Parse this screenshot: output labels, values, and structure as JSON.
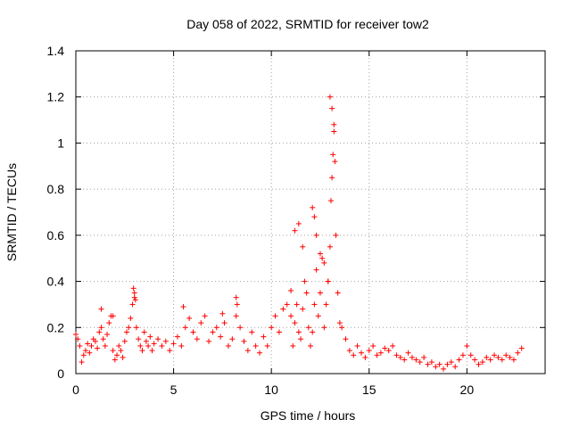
{
  "chart_data": {
    "type": "scatter",
    "title": "Day 058 of 2022, SRMTID for receiver tow2",
    "xlabel": "GPS time / hours",
    "ylabel": "SRMTID / TECUs",
    "xlim": [
      0,
      24
    ],
    "ylim": [
      0,
      1.4
    ],
    "xticks": [
      "0",
      "5",
      "10",
      "15",
      "20"
    ],
    "yticks": [
      "0",
      "0.2",
      "0.4",
      "0.6",
      "0.8",
      "1",
      "1.2",
      "1.4"
    ],
    "grid": true,
    "marker": "+",
    "color": "#ff0000",
    "series": [
      {
        "name": "SRMTID",
        "x": [
          0.0,
          0.1,
          0.2,
          0.3,
          0.4,
          0.5,
          0.6,
          0.7,
          0.8,
          0.9,
          1.0,
          1.1,
          1.2,
          1.3,
          1.4,
          1.5,
          1.6,
          1.7,
          1.8,
          1.9,
          2.0,
          2.1,
          2.2,
          2.3,
          2.4,
          2.5,
          2.6,
          2.7,
          2.8,
          2.9,
          3.0,
          3.1,
          3.2,
          3.3,
          3.4,
          3.5,
          3.6,
          3.7,
          3.8,
          3.9,
          4.0,
          4.2,
          4.4,
          4.6,
          4.8,
          5.0,
          5.2,
          5.4,
          5.6,
          5.8,
          6.0,
          6.2,
          6.4,
          6.6,
          6.8,
          7.0,
          7.2,
          7.4,
          7.6,
          7.8,
          8.0,
          8.2,
          8.4,
          8.6,
          8.8,
          9.0,
          9.2,
          9.4,
          9.6,
          9.8,
          10.0,
          10.2,
          10.4,
          10.6,
          10.8,
          11.0,
          11.1,
          11.2,
          11.3,
          11.4,
          11.5,
          11.6,
          11.7,
          11.8,
          11.9,
          12.0,
          12.1,
          12.2,
          12.3,
          12.4,
          12.5,
          12.6,
          12.7,
          12.8,
          12.9,
          13.0,
          13.05,
          13.1,
          13.15,
          13.2,
          13.3,
          13.4,
          13.5,
          13.6,
          13.8,
          14.0,
          14.2,
          14.4,
          14.6,
          14.8,
          15.0,
          15.2,
          15.4,
          15.6,
          15.8,
          16.0,
          16.2,
          16.4,
          16.6,
          16.8,
          17.0,
          17.2,
          17.4,
          17.6,
          17.8,
          18.0,
          18.2,
          18.4,
          18.6,
          18.8,
          19.0,
          19.2,
          19.4,
          19.6,
          19.8,
          20.0,
          20.2,
          20.4,
          20.6,
          20.8,
          21.0,
          21.2,
          21.4,
          21.6,
          21.8,
          22.0,
          22.2,
          22.4,
          22.6,
          22.8,
          2.95,
          3.0,
          3.05,
          8.2,
          8.25,
          11.0,
          11.2,
          11.4,
          11.6,
          12.1,
          12.2,
          12.3,
          12.5,
          12.7,
          12.9,
          13.0,
          13.1,
          13.2,
          13.25,
          1.3,
          1.9,
          5.5,
          7.5
        ],
        "y": [
          0.17,
          0.15,
          0.12,
          0.05,
          0.08,
          0.1,
          0.13,
          0.09,
          0.12,
          0.15,
          0.14,
          0.11,
          0.18,
          0.2,
          0.15,
          0.12,
          0.17,
          0.22,
          0.25,
          0.1,
          0.06,
          0.08,
          0.12,
          0.1,
          0.07,
          0.14,
          0.18,
          0.2,
          0.24,
          0.3,
          0.33,
          0.2,
          0.15,
          0.12,
          0.1,
          0.18,
          0.14,
          0.12,
          0.16,
          0.1,
          0.13,
          0.15,
          0.12,
          0.14,
          0.1,
          0.13,
          0.16,
          0.12,
          0.2,
          0.24,
          0.18,
          0.15,
          0.22,
          0.25,
          0.14,
          0.18,
          0.2,
          0.16,
          0.22,
          0.12,
          0.15,
          0.25,
          0.2,
          0.14,
          0.1,
          0.18,
          0.12,
          0.09,
          0.16,
          0.12,
          0.2,
          0.25,
          0.18,
          0.28,
          0.3,
          0.25,
          0.12,
          0.22,
          0.3,
          0.18,
          0.15,
          0.28,
          0.4,
          0.35,
          0.2,
          0.12,
          0.18,
          0.3,
          0.45,
          0.25,
          0.35,
          0.5,
          0.2,
          0.3,
          0.4,
          0.55,
          0.75,
          0.85,
          0.95,
          1.05,
          0.6,
          0.35,
          0.22,
          0.2,
          0.15,
          0.1,
          0.08,
          0.12,
          0.09,
          0.07,
          0.1,
          0.12,
          0.08,
          0.09,
          0.11,
          0.1,
          0.12,
          0.08,
          0.07,
          0.06,
          0.09,
          0.07,
          0.06,
          0.05,
          0.07,
          0.04,
          0.05,
          0.03,
          0.04,
          0.02,
          0.04,
          0.05,
          0.03,
          0.06,
          0.08,
          0.12,
          0.08,
          0.06,
          0.04,
          0.05,
          0.07,
          0.06,
          0.08,
          0.07,
          0.06,
          0.08,
          0.07,
          0.06,
          0.09,
          0.11,
          0.37,
          0.35,
          0.32,
          0.33,
          0.3,
          0.36,
          0.62,
          0.65,
          0.55,
          0.72,
          0.68,
          0.6,
          0.52,
          0.48,
          0.4,
          1.2,
          1.15,
          1.08,
          0.92,
          0.28,
          0.25,
          0.29,
          0.26
        ]
      }
    ]
  }
}
